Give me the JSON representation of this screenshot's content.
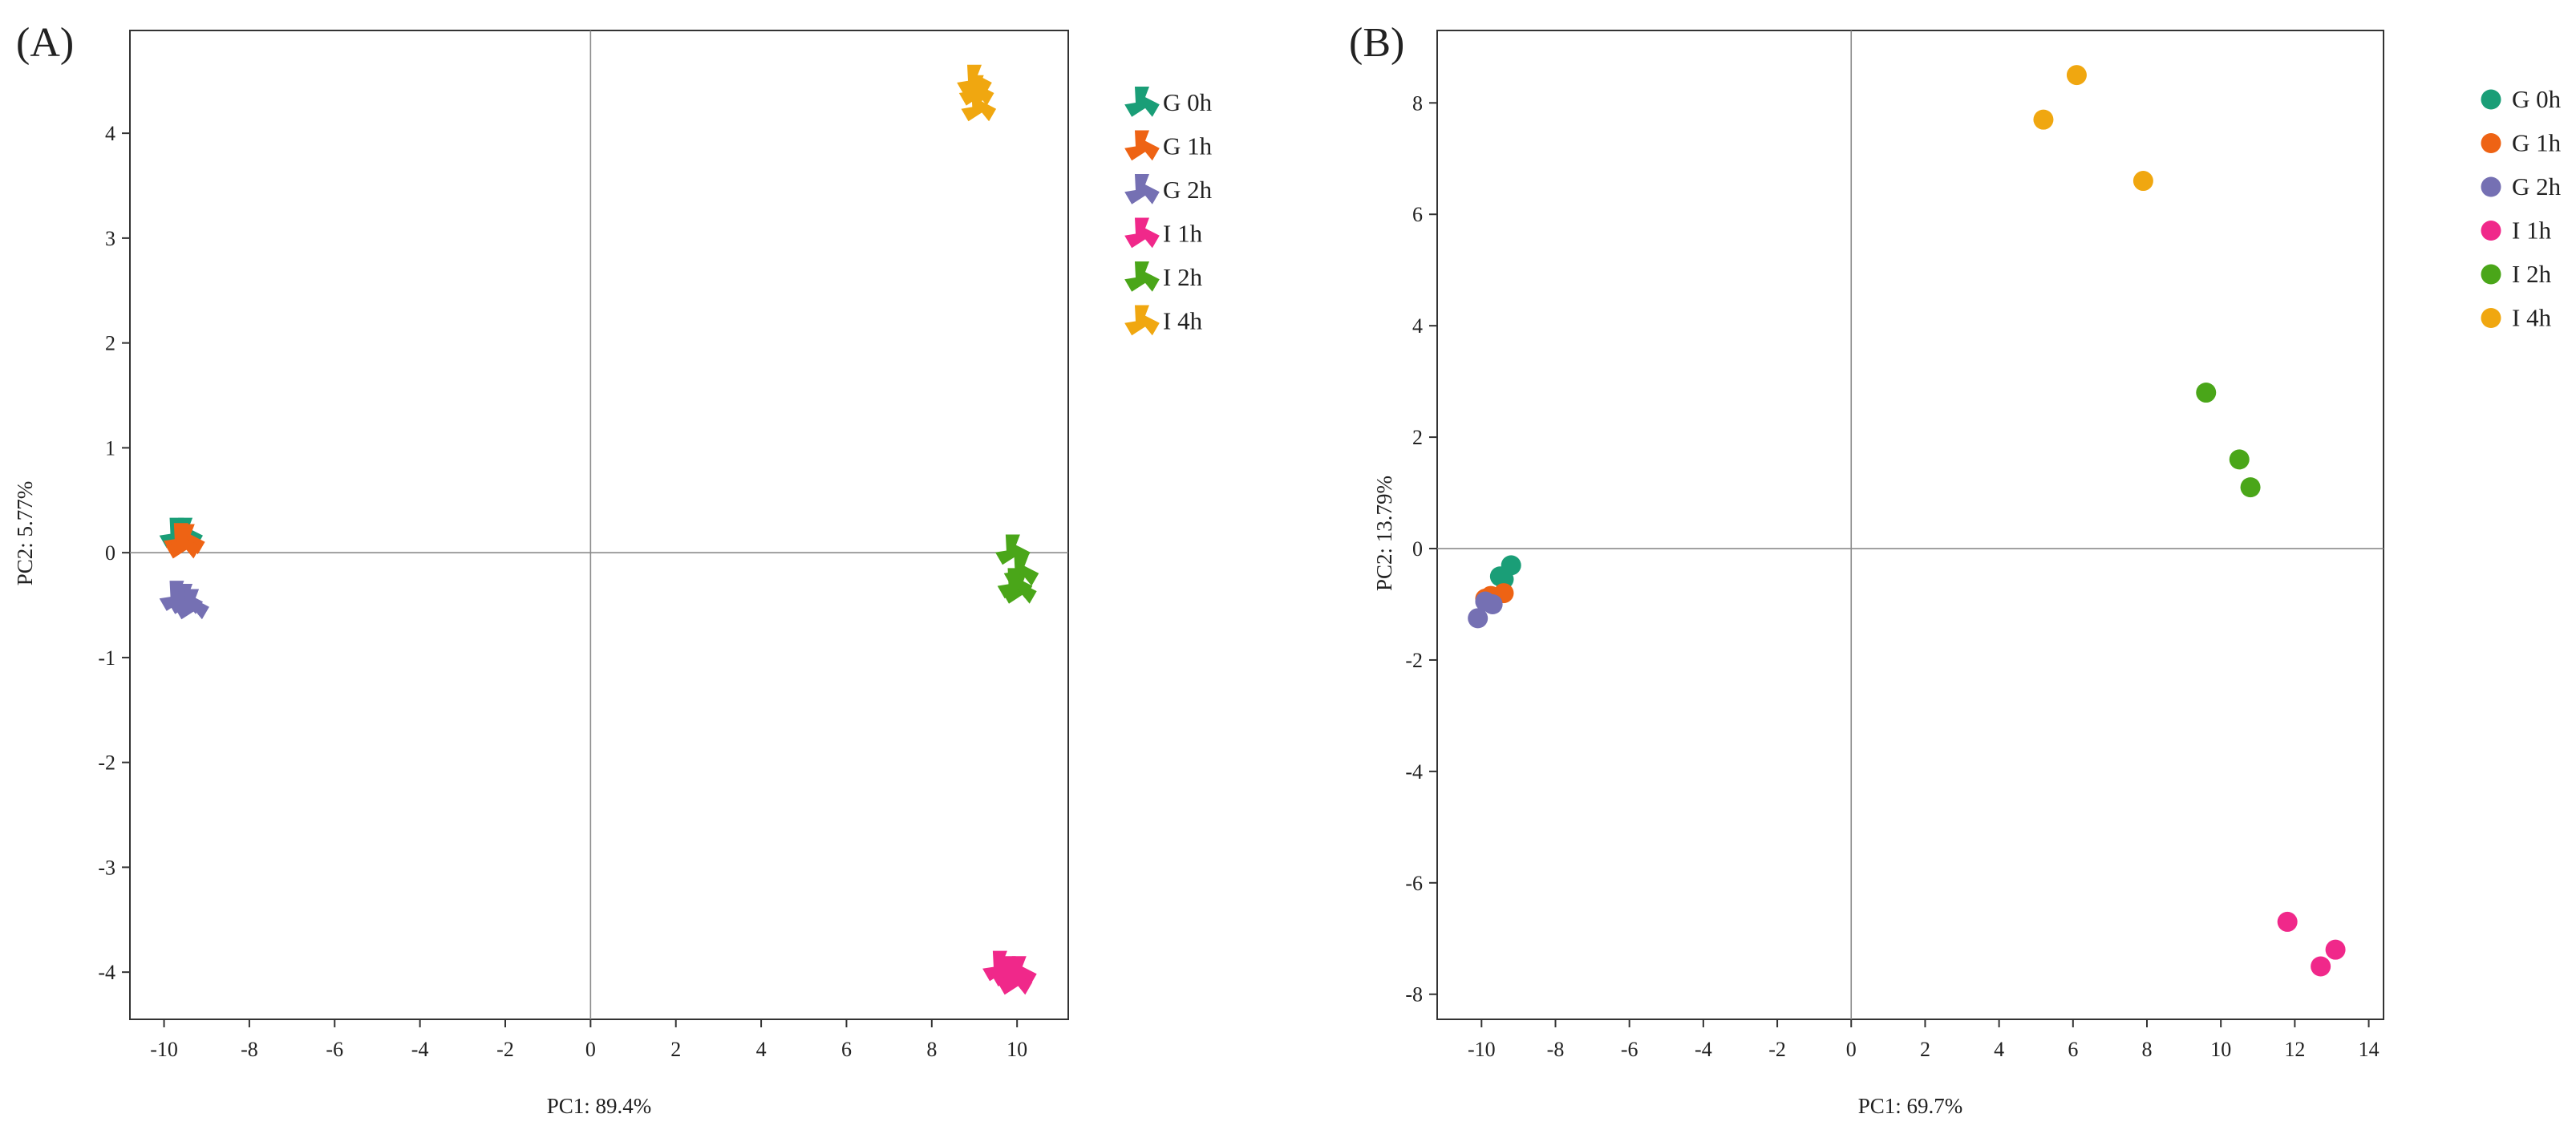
{
  "chart_data": [
    {
      "panel_label": "(A)",
      "type": "scatter",
      "marker": "tri-star",
      "xlabel": "PC1: 89.4%",
      "ylabel": "PC2: 5.77%",
      "xlim": [
        -10.8,
        11.2
      ],
      "ylim": [
        -4.45,
        4.98
      ],
      "xticks": [
        -10,
        -8,
        -6,
        -4,
        -2,
        0,
        2,
        4,
        6,
        8,
        10
      ],
      "yticks": [
        -4,
        -3,
        -2,
        -1,
        0,
        1,
        2,
        3,
        4
      ],
      "grid": false,
      "zero_lines": true,
      "legend_position": "outside-right-top",
      "series": [
        {
          "name": "G 0h",
          "color": "#1a9e77",
          "points": [
            [
              -9.7,
              0.18
            ],
            [
              -9.5,
              0.18
            ],
            [
              -9.6,
              0.12
            ]
          ]
        },
        {
          "name": "G 1h",
          "color": "#ee6314",
          "points": [
            [
              -9.6,
              0.13
            ],
            [
              -9.45,
              0.12
            ],
            [
              -9.55,
              0.08
            ]
          ]
        },
        {
          "name": "G 2h",
          "color": "#7570b3",
          "points": [
            [
              -9.7,
              -0.42
            ],
            [
              -9.5,
              -0.45
            ],
            [
              -9.35,
              -0.5
            ]
          ]
        },
        {
          "name": "I 1h",
          "color": "#f0288a",
          "points": [
            [
              9.6,
              -3.95
            ],
            [
              9.8,
              -4.0
            ],
            [
              10.05,
              -4.0
            ],
            [
              9.95,
              -4.08
            ]
          ]
        },
        {
          "name": "I 2h",
          "color": "#4aa619",
          "points": [
            [
              9.9,
              0.02
            ],
            [
              10.1,
              -0.18
            ],
            [
              10.05,
              -0.35
            ],
            [
              9.95,
              -0.3
            ]
          ]
        },
        {
          "name": "I 4h",
          "color": "#f0a710",
          "points": [
            [
              9.0,
              4.5
            ],
            [
              9.05,
              4.4
            ],
            [
              9.1,
              4.25
            ]
          ]
        }
      ]
    },
    {
      "panel_label": "(B)",
      "type": "scatter",
      "marker": "circle",
      "xlabel": "PC1: 69.7%",
      "ylabel": "PC2: 13.79%",
      "xlim": [
        -11.2,
        14.4
      ],
      "ylim": [
        -8.45,
        9.3
      ],
      "xticks": [
        -10,
        -8,
        -6,
        -4,
        -2,
        0,
        2,
        4,
        6,
        8,
        10,
        12,
        14
      ],
      "yticks": [
        -8,
        -6,
        -4,
        -2,
        0,
        2,
        4,
        6,
        8
      ],
      "grid": false,
      "zero_lines": true,
      "legend_position": "outside-right-top",
      "series": [
        {
          "name": "G 0h",
          "color": "#1a9e77",
          "points": [
            [
              -9.2,
              -0.3
            ],
            [
              -9.5,
              -0.5
            ],
            [
              -9.4,
              -0.55
            ]
          ]
        },
        {
          "name": "G 1h",
          "color": "#ee6314",
          "points": [
            [
              -9.4,
              -0.8
            ],
            [
              -9.75,
              -0.85
            ],
            [
              -9.9,
              -0.9
            ]
          ]
        },
        {
          "name": "G 2h",
          "color": "#7570b3",
          "points": [
            [
              -10.1,
              -1.25
            ],
            [
              -9.9,
              -0.95
            ],
            [
              -9.7,
              -1.0
            ]
          ]
        },
        {
          "name": "I 1h",
          "color": "#f0288a",
          "points": [
            [
              11.8,
              -6.7
            ],
            [
              13.1,
              -7.2
            ],
            [
              12.7,
              -7.5
            ]
          ]
        },
        {
          "name": "I 2h",
          "color": "#4aa619",
          "points": [
            [
              9.6,
              2.8
            ],
            [
              10.5,
              1.6
            ],
            [
              10.8,
              1.1
            ]
          ]
        },
        {
          "name": "I 4h",
          "color": "#f0a710",
          "points": [
            [
              6.1,
              8.5
            ],
            [
              5.2,
              7.7
            ],
            [
              7.9,
              6.6
            ]
          ]
        }
      ]
    }
  ]
}
